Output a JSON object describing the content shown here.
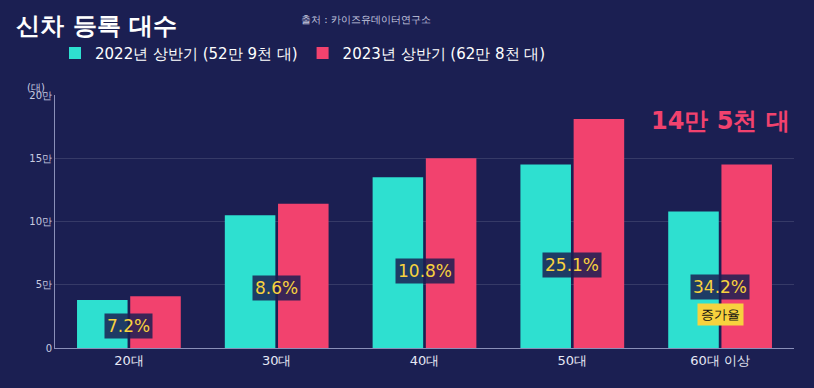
{
  "chart_data": {
    "type": "bar",
    "title": "신차 등록 대수",
    "subtitle": "출처 : 카이즈유데이터연구소",
    "y_label": "(대)",
    "categories": [
      "20대",
      "30대",
      "40대",
      "50대",
      "60대 이상"
    ],
    "series": [
      {
        "name": "2022년 상반기 (52만 9천 대)",
        "color": "#2ee0d0",
        "values": [
          38000,
          105000,
          135000,
          145000,
          108000
        ]
      },
      {
        "name": "2023년 상반기 (62만 8천 대)",
        "color": "#f2426e",
        "values": [
          41000,
          114000,
          150000,
          181000,
          145000
        ]
      }
    ],
    "ylim": [
      0,
      200000
    ],
    "yticks": [
      0,
      {
        "value": 50000,
        "label": "5만"
      },
      {
        "value": 100000,
        "label": "10만"
      },
      {
        "value": 150000,
        "label": "15만"
      },
      {
        "value": 200000,
        "label": "20만"
      }
    ],
    "grid": true,
    "legend": "top-left",
    "growth_labels": [
      "7.2%",
      "8.6%",
      "10.8%",
      "25.1%",
      "34.2%"
    ],
    "growth_title": {
      "category": "60대 이상",
      "text": "증가율"
    },
    "highlight": {
      "category": "60대 이상",
      "text": "14만 5천 대"
    }
  }
}
